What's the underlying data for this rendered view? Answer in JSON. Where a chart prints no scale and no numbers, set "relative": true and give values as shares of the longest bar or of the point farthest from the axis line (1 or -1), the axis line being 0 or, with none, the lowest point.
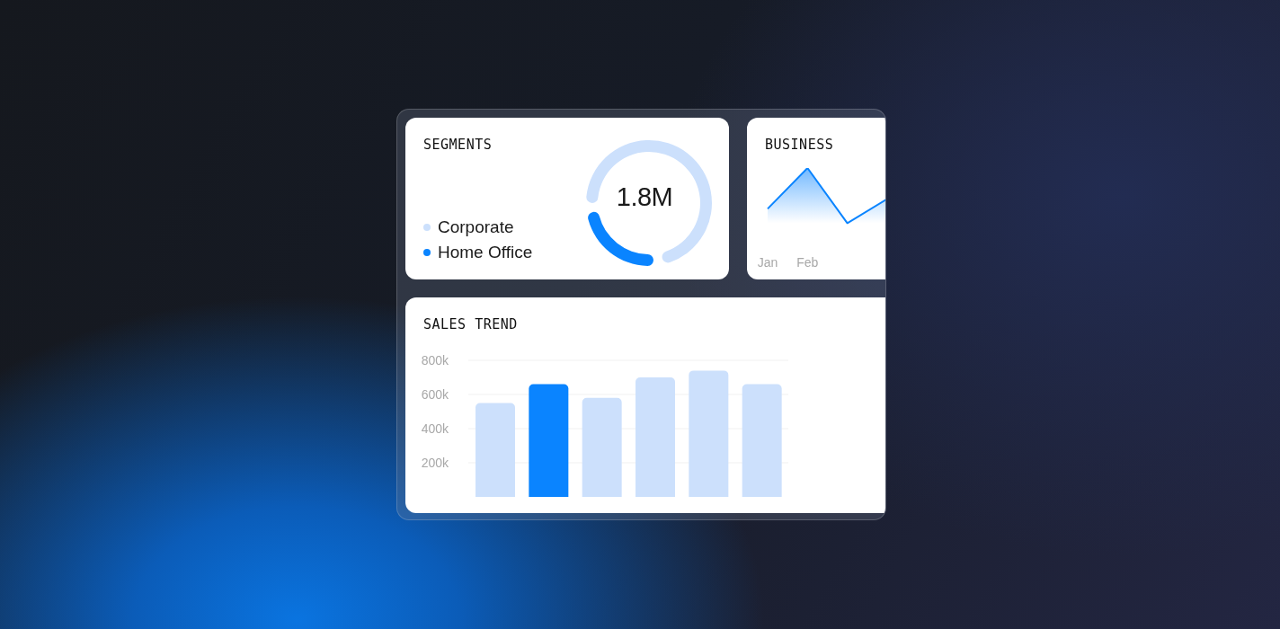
{
  "chart_data": [
    {
      "type": "donut",
      "title": "SEGMENTS",
      "categories": [
        "Corporate",
        "Home Office"
      ],
      "values": [
        75,
        25
      ],
      "colors": [
        "#cce0fc",
        "#0a84ff"
      ],
      "annotations": [
        "1.8M"
      ],
      "legend": "bottom left"
    },
    {
      "type": "area",
      "title": "BUSINESS",
      "categories": [
        "Jan",
        "Feb",
        null,
        null
      ],
      "relative": true,
      "series": [
        {
          "color": "#0a84ff",
          "values": [
            0.26,
            1,
            0,
            0.44
          ]
        }
      ]
    },
    {
      "type": "bar",
      "title": "SALES TREND",
      "categories": [
        null,
        null,
        null,
        null,
        null,
        null
      ],
      "values": [
        550000,
        660000,
        580000,
        700000,
        740000,
        660000
      ],
      "colors": [
        "#cce0fc",
        "#0a84ff",
        "#cce0fc",
        "#cce0fc",
        "#cce0fc",
        "#cce0fc"
      ],
      "ylim": [
        0,
        800000
      ],
      "yticks": [
        {
          "value": 200000,
          "label": "200k"
        },
        {
          "value": 400000,
          "label": "400k"
        },
        {
          "value": 600000,
          "label": "600k"
        },
        {
          "value": 800000,
          "label": "800k"
        }
      ],
      "grid": "y",
      "tick_labels": "y"
    }
  ]
}
